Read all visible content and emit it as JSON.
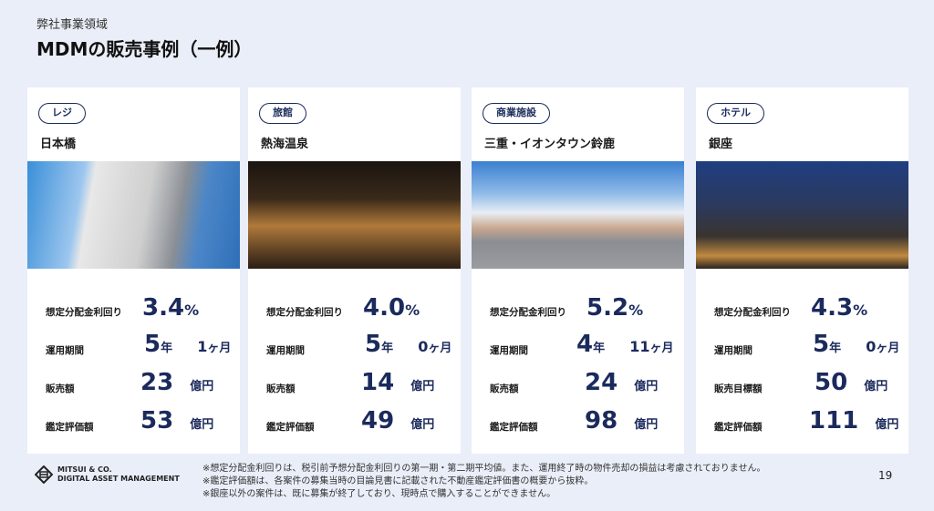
{
  "header": {
    "subtitle": "弊社事業領域",
    "title": "MDMの販売事例（一例）"
  },
  "labels": {
    "yield": "想定分配金利回り",
    "period": "運用期間",
    "sales": "販売額",
    "target_sales": "販売目標額",
    "appraisal": "鑑定評価額",
    "pct": "%",
    "year": "年",
    "month": "ヶ月",
    "oku": "億円"
  },
  "cards": [
    {
      "badge": "レジ",
      "name": "日本橋",
      "yield": "3.4",
      "years": "5",
      "months": "1",
      "sales_label": "販売額",
      "sales": "23",
      "appraisal": "53"
    },
    {
      "badge": "旅館",
      "name": "熱海温泉",
      "yield": "4.0",
      "years": "5",
      "months": "0",
      "sales_label": "販売額",
      "sales": "14",
      "appraisal": "49"
    },
    {
      "badge": "商業施設",
      "name": "三重・イオンタウン鈴鹿",
      "yield": "5.2",
      "years": "4",
      "months": "11",
      "sales_label": "販売額",
      "sales": "24",
      "appraisal": "98"
    },
    {
      "badge": "ホテル",
      "name": "銀座",
      "yield": "4.3",
      "years": "5",
      "months": "0",
      "sales_label": "販売目標額",
      "sales": "50",
      "appraisal": "111"
    }
  ],
  "footer": {
    "logo_line1": "MITSUI & CO.",
    "logo_line2": "DIGITAL ASSET MANAGEMENT",
    "notes": [
      "※想定分配金利回りは、税引前予想分配金利回りの第一期・第二期平均値。また、運用終了時の物件売却の損益は考慮されておりません。",
      "※鑑定評価額は、各案件の募集当時の目論見書に記載された不動産鑑定評価書の概要から抜粋。",
      "※銀座以外の案件は、既に募集が終了しており、現時点で購入することができません。"
    ],
    "page": "19"
  },
  "colors": {
    "accent": "#1b2a5c",
    "background": "#e9eef8"
  }
}
